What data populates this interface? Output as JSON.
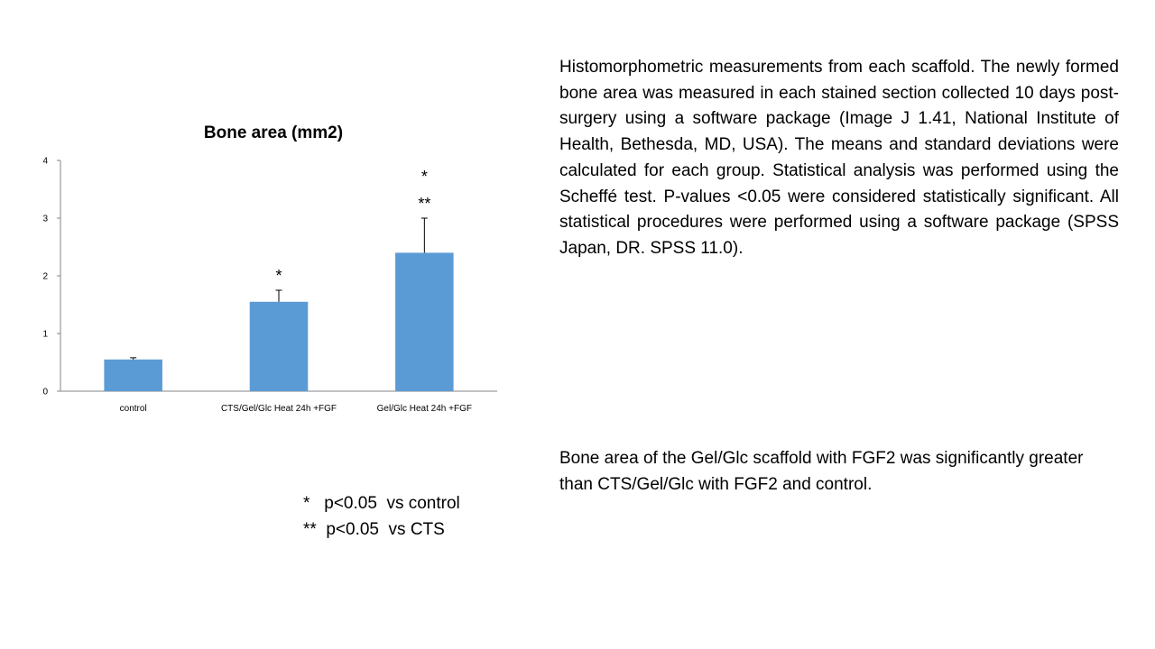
{
  "chart_data": {
    "type": "bar",
    "title": "Bone area (mm2)",
    "categories": [
      "control",
      "CTS/Gel/Glc Heat 24h +FGF",
      "Gel/Glc Heat 24h +FGF"
    ],
    "values": [
      0.55,
      1.55,
      2.4
    ],
    "error_plus": [
      0.03,
      0.2,
      0.6
    ],
    "significance": [
      [],
      [
        "*"
      ],
      [
        "*",
        "**"
      ]
    ],
    "ylim": [
      0,
      4
    ],
    "yticks": [
      "0",
      "1",
      "2",
      "3",
      "4"
    ],
    "xlabel": "",
    "ylabel": "",
    "bar_color": "#5b9bd5",
    "grid": false,
    "legend": "none"
  },
  "legend_notes": [
    {
      "marker": "*",
      "text": "p<0.05  vs control"
    },
    {
      "marker": "**",
      "text": "p<0.05  vs CTS"
    }
  ],
  "text_blocks": {
    "methods": "Histomorphometric measurements from each scaffold. The newly formed bone area was measured in each stained section collected 10 days post-surgery using a software package (Image J 1.41, National Institute of Health, Bethesda, MD, USA). The means and standard deviations were calculated for each group. Statistical analysis was performed using the Scheffé test. P-values <0.05 were considered statistically significant. All statistical procedures were performed using a software package (SPSS Japan, DR. SPSS 11.0).",
    "result": "Bone area of the Gel/Glc scaffold with FGF2 was significantly greater than CTS/Gel/Glc with FGF2 and control."
  }
}
